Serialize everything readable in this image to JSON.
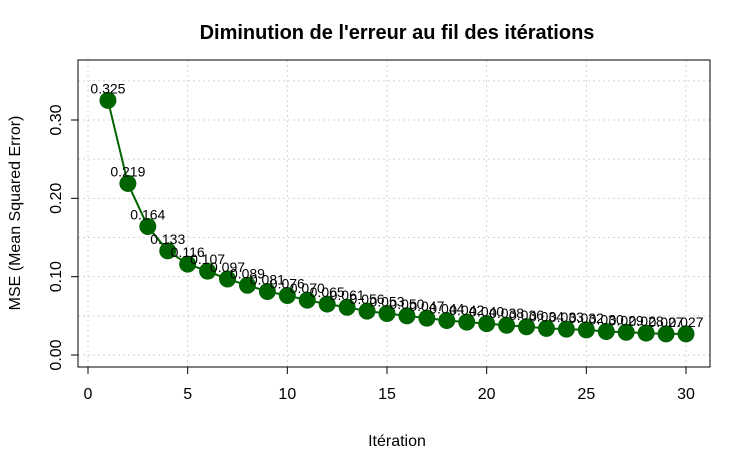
{
  "chart_data": {
    "type": "line",
    "title": "Diminution de l'erreur au fil des itérations",
    "xlabel": "Itération",
    "ylabel": "MSE (Mean Squared Error)",
    "xlim": [
      0,
      31
    ],
    "ylim": [
      -0.02,
      0.37
    ],
    "xticks": [
      0,
      5,
      10,
      15,
      20,
      25,
      30
    ],
    "yticks": [
      0.0,
      0.1,
      0.2,
      0.3
    ],
    "xtick_labels": [
      "0",
      "5",
      "10",
      "15",
      "20",
      "25",
      "30"
    ],
    "ytick_labels": [
      "0.00",
      "0.10",
      "0.20",
      "0.30"
    ],
    "grid": true,
    "x": [
      1,
      2,
      3,
      4,
      5,
      6,
      7,
      8,
      9,
      10,
      11,
      12,
      13,
      14,
      15,
      16,
      17,
      18,
      19,
      20,
      21,
      22,
      23,
      24,
      25,
      26,
      27,
      28,
      29,
      30
    ],
    "y": [
      0.325,
      0.219,
      0.164,
      0.133,
      0.116,
      0.107,
      0.097,
      0.089,
      0.081,
      0.076,
      0.07,
      0.065,
      0.061,
      0.056,
      0.053,
      0.05,
      0.047,
      0.044,
      0.042,
      0.04,
      0.038,
      0.036,
      0.034,
      0.033,
      0.032,
      0.03,
      0.029,
      0.028,
      0.027,
      0.027
    ],
    "labels": [
      ".325",
      ".219",
      ".164",
      ".133",
      ".116",
      ".107",
      ".097",
      ".089",
      ".081",
      ".076",
      ".070",
      ".065",
      ".061",
      ".056",
      ".053",
      ".050",
      ".047",
      ".044",
      ".042",
      ".040",
      ".038",
      ".036",
      ".034",
      ".033",
      ".032",
      ".030",
      ".029",
      ".028",
      ".027",
      ".027"
    ],
    "line_color": "#006400",
    "marker_color": "#006400",
    "label_prefix": "0"
  }
}
